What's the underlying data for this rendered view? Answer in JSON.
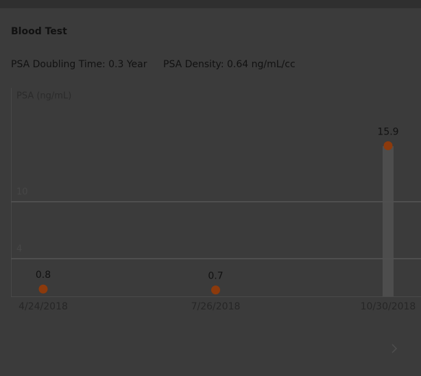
{
  "header": {
    "title": "Blood Test",
    "metrics": [
      "PSA Doubling Time: 0.3 Year",
      "PSA Density: 0.64 ng/mL/cc"
    ]
  },
  "chart_data": {
    "type": "scatter",
    "ylabel": "PSA (ng/mL)",
    "categories": [
      "4/24/2018",
      "7/26/2018",
      "10/30/2018"
    ],
    "values": [
      0.8,
      0.7,
      15.9
    ],
    "color": "#8c3a0c",
    "ylim": [
      0,
      22
    ],
    "yticks": [
      4,
      10
    ],
    "grid": true
  }
}
